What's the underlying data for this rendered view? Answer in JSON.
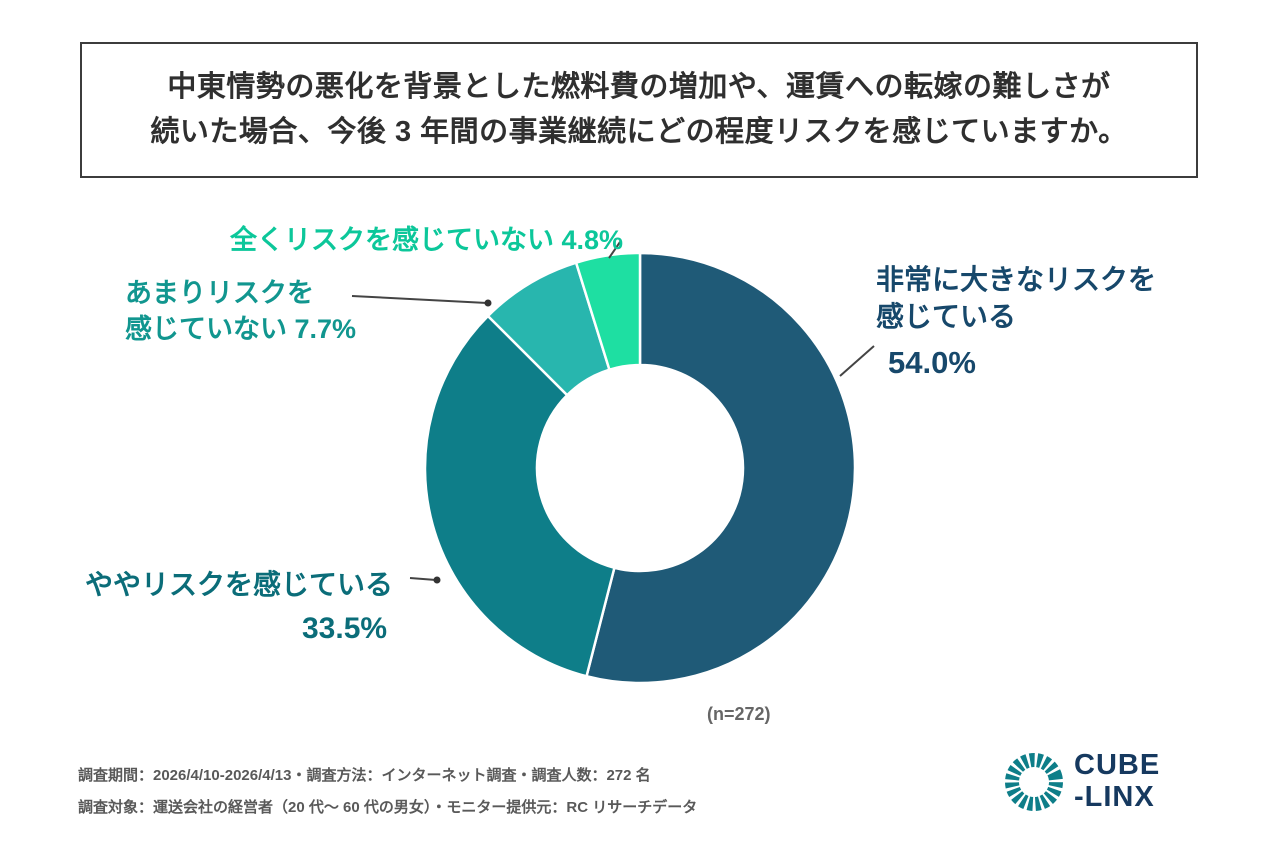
{
  "title": {
    "line1": "中東情勢の悪化を背景とした燃料費の増加や、運賃への転嫁の難しさが",
    "line2": "続いた場合、今後 3 年間の事業継続にどの程度リスクを感じていますか。"
  },
  "chart_data": {
    "type": "pie",
    "subtype": "donut",
    "title": "今後3年間の事業継続リスクの認識",
    "sample_label": "(n=272)",
    "start_angle_deg": 0,
    "direction": "clockwise",
    "inner_radius_ratio": 0.48,
    "segments": [
      {
        "label": "非常に大きなリスクを感じている",
        "value": 54.0,
        "display": "54.0%",
        "color": "#1f5a77",
        "label_color": "#17486b"
      },
      {
        "label": "ややリスクを感じている",
        "value": 33.5,
        "display": "33.5%",
        "color": "#0e7e89",
        "label_color": "#0b6d79"
      },
      {
        "label": "あまりリスクを感じていない",
        "value": 7.7,
        "display": "7.7%",
        "color": "#28b6ae",
        "label_color": "#11968f"
      },
      {
        "label": "全くリスクを感じていない",
        "value": 4.8,
        "display": "4.8%",
        "color": "#1edfa2",
        "label_color": "#0cc79a"
      }
    ]
  },
  "callouts": {
    "very_large": {
      "line1": "非常に大きなリスクを",
      "line2": "感じている",
      "value": "54.0%"
    },
    "somewhat": {
      "label": "ややリスクを感じている",
      "value": "33.5%"
    },
    "not_much": {
      "line1": "あまりリスクを",
      "line2": "感じていない 7.7%"
    },
    "none": {
      "label": "全くリスクを感じていない 4.8%"
    }
  },
  "sample": {
    "n_label": "(n=272)"
  },
  "footer": {
    "line1": "調査期間：2026/4/10-2026/4/13・調査方法：インターネット調査・調査人数：272 名",
    "line2": "調査対象：運送会社の経営者（20 代〜 60 代の男女）・モニター提供元：RC リサーチデータ"
  },
  "logo": {
    "line1": "CUBE",
    "line2": "-LINX",
    "text_color": "#16395f",
    "icon_color": "#0e7e89"
  }
}
